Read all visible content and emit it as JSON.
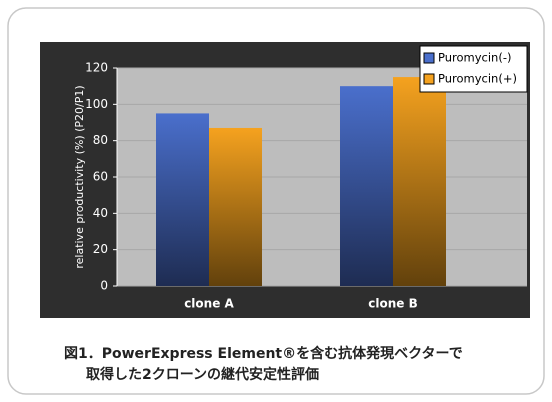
{
  "chart_data": {
    "type": "bar",
    "y_label": "relative productivity (%) (P20/P1)",
    "categories": [
      "clone A",
      "clone B"
    ],
    "series": [
      {
        "name": "Puromycin(-)",
        "color": "#4a6fcc",
        "values": [
          95,
          110
        ]
      },
      {
        "name": "Puromycin(+)",
        "color": "#f5a21f",
        "values": [
          87,
          115
        ]
      }
    ],
    "ylim": [
      0,
      120
    ],
    "yticks": [
      0,
      20,
      40,
      60,
      80,
      100,
      120
    ],
    "grid": true,
    "legend": "top-right",
    "caption": [
      "図1．PowerExpress Element®を含む抗体発現ベクターで",
      "取得した2クローンの継代安定性評価"
    ]
  }
}
